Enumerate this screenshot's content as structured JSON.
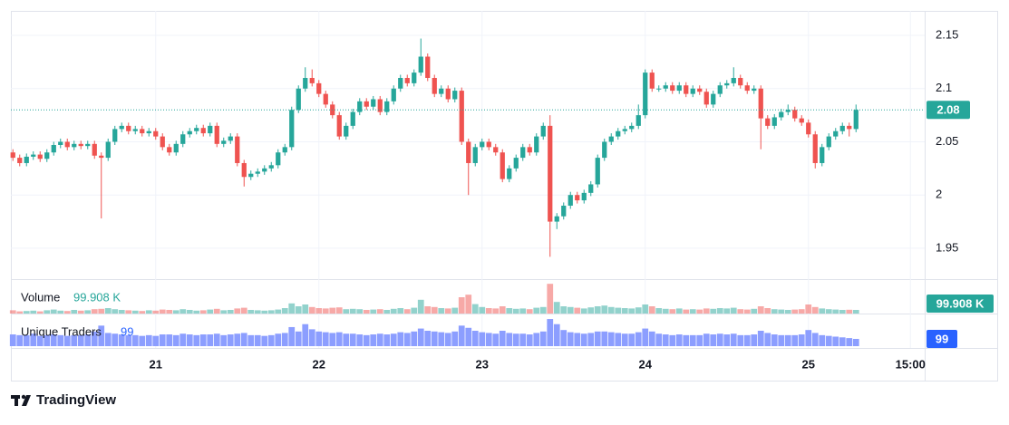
{
  "chart_data": {
    "type": "candlestick",
    "up_color": "#26a69a",
    "down_color": "#ef5350",
    "xlim": [
      -0.3,
      134.1
    ],
    "ylim": [
      1.921,
      2.173
    ],
    "yticks": [
      1.95,
      2,
      2.05,
      2.1,
      2.15
    ],
    "xticks": [
      {
        "value": 21,
        "label": "21"
      },
      {
        "value": 45,
        "label": "22"
      },
      {
        "value": 69,
        "label": "23"
      },
      {
        "value": 93,
        "label": "24"
      },
      {
        "value": 117,
        "label": "25"
      },
      {
        "value": 132,
        "label": "15:00"
      }
    ],
    "grid": true,
    "ohlc": [
      [
        2.04,
        2.043,
        2.032,
        2.035
      ],
      [
        2.035,
        2.038,
        2.027,
        2.03
      ],
      [
        2.03,
        2.039,
        2.027,
        2.036
      ],
      [
        2.036,
        2.041,
        2.033,
        2.038
      ],
      [
        2.038,
        2.041,
        2.031,
        2.034
      ],
      [
        2.034,
        2.043,
        2.031,
        2.04
      ],
      [
        2.04,
        2.05,
        2.037,
        2.047
      ],
      [
        2.047,
        2.053,
        2.044,
        2.05
      ],
      [
        2.05,
        2.053,
        2.042,
        2.045
      ],
      [
        2.045,
        2.051,
        2.042,
        2.048
      ],
      [
        2.048,
        2.051,
        2.043,
        2.046
      ],
      [
        2.046,
        2.051,
        2.043,
        2.048
      ],
      [
        2.048,
        2.051,
        2.034,
        2.037
      ],
      [
        2.037,
        2.04,
        1.978,
        2.035
      ],
      [
        2.035,
        2.053,
        2.032,
        2.05
      ],
      [
        2.05,
        2.065,
        2.047,
        2.062
      ],
      [
        2.062,
        2.068,
        2.059,
        2.065
      ],
      [
        2.065,
        2.068,
        2.057,
        2.06
      ],
      [
        2.06,
        2.065,
        2.057,
        2.062
      ],
      [
        2.062,
        2.065,
        2.055,
        2.058
      ],
      [
        2.058,
        2.063,
        2.055,
        2.06
      ],
      [
        2.06,
        2.063,
        2.052,
        2.055
      ],
      [
        2.055,
        2.058,
        2.042,
        2.045
      ],
      [
        2.045,
        2.048,
        2.037,
        2.04
      ],
      [
        2.04,
        2.051,
        2.037,
        2.048
      ],
      [
        2.048,
        2.06,
        2.045,
        2.057
      ],
      [
        2.057,
        2.063,
        2.054,
        2.06
      ],
      [
        2.06,
        2.066,
        2.057,
        2.063
      ],
      [
        2.063,
        2.066,
        2.055,
        2.058
      ],
      [
        2.058,
        2.068,
        2.055,
        2.065
      ],
      [
        2.065,
        2.068,
        2.045,
        2.048
      ],
      [
        2.048,
        2.054,
        2.045,
        2.051
      ],
      [
        2.051,
        2.058,
        2.048,
        2.055
      ],
      [
        2.055,
        2.058,
        2.027,
        2.03
      ],
      [
        2.03,
        2.033,
        2.008,
        2.017
      ],
      [
        2.017,
        2.023,
        2.014,
        2.02
      ],
      [
        2.02,
        2.025,
        2.017,
        2.022
      ],
      [
        2.022,
        2.028,
        2.019,
        2.025
      ],
      [
        2.025,
        2.031,
        2.022,
        2.028
      ],
      [
        2.028,
        2.043,
        2.025,
        2.04
      ],
      [
        2.04,
        2.048,
        2.037,
        2.045
      ],
      [
        2.045,
        2.083,
        2.042,
        2.08
      ],
      [
        2.08,
        2.103,
        2.077,
        2.1
      ],
      [
        2.1,
        2.12,
        2.097,
        2.11
      ],
      [
        2.11,
        2.118,
        2.102,
        2.105
      ],
      [
        2.105,
        2.108,
        2.092,
        2.095
      ],
      [
        2.095,
        2.098,
        2.082,
        2.085
      ],
      [
        2.085,
        2.088,
        2.072,
        2.075
      ],
      [
        2.075,
        2.078,
        2.052,
        2.055
      ],
      [
        2.055,
        2.068,
        2.052,
        2.065
      ],
      [
        2.065,
        2.081,
        2.062,
        2.078
      ],
      [
        2.078,
        2.091,
        2.075,
        2.088
      ],
      [
        2.088,
        2.091,
        2.08,
        2.083
      ],
      [
        2.083,
        2.093,
        2.08,
        2.09
      ],
      [
        2.09,
        2.093,
        2.075,
        2.078
      ],
      [
        2.078,
        2.091,
        2.075,
        2.088
      ],
      [
        2.088,
        2.103,
        2.085,
        2.1
      ],
      [
        2.1,
        2.113,
        2.097,
        2.11
      ],
      [
        2.11,
        2.113,
        2.102,
        2.105
      ],
      [
        2.105,
        2.118,
        2.102,
        2.115
      ],
      [
        2.115,
        2.147,
        2.112,
        2.13
      ],
      [
        2.13,
        2.133,
        2.107,
        2.11
      ],
      [
        2.11,
        2.113,
        2.092,
        2.095
      ],
      [
        2.095,
        2.103,
        2.092,
        2.1
      ],
      [
        2.1,
        2.103,
        2.087,
        2.09
      ],
      [
        2.09,
        2.101,
        2.087,
        2.098
      ],
      [
        2.098,
        2.101,
        2.047,
        2.05
      ],
      [
        2.05,
        2.053,
        2.0,
        2.03
      ],
      [
        2.03,
        2.048,
        2.027,
        2.045
      ],
      [
        2.045,
        2.053,
        2.042,
        2.05
      ],
      [
        2.05,
        2.053,
        2.042,
        2.045
      ],
      [
        2.045,
        2.048,
        2.037,
        2.04
      ],
      [
        2.04,
        2.043,
        2.012,
        2.015
      ],
      [
        2.015,
        2.028,
        2.012,
        2.025
      ],
      [
        2.025,
        2.038,
        2.022,
        2.035
      ],
      [
        2.035,
        2.048,
        2.032,
        2.045
      ],
      [
        2.045,
        2.048,
        2.037,
        2.04
      ],
      [
        2.04,
        2.058,
        2.037,
        2.055
      ],
      [
        2.055,
        2.068,
        2.052,
        2.065
      ],
      [
        2.065,
        2.075,
        1.942,
        1.975
      ],
      [
        1.975,
        1.983,
        1.968,
        1.98
      ],
      [
        1.98,
        1.993,
        1.977,
        1.99
      ],
      [
        1.99,
        2.003,
        1.987,
        2.0
      ],
      [
        2.0,
        2.003,
        1.992,
        1.995
      ],
      [
        1.995,
        2.005,
        1.992,
        2.002
      ],
      [
        2.002,
        2.013,
        1.999,
        2.01
      ],
      [
        2.01,
        2.038,
        2.007,
        2.035
      ],
      [
        2.035,
        2.053,
        2.032,
        2.05
      ],
      [
        2.05,
        2.058,
        2.047,
        2.055
      ],
      [
        2.055,
        2.063,
        2.052,
        2.06
      ],
      [
        2.06,
        2.065,
        2.057,
        2.062
      ],
      [
        2.062,
        2.068,
        2.059,
        2.065
      ],
      [
        2.065,
        2.085,
        2.062,
        2.075
      ],
      [
        2.075,
        2.118,
        2.072,
        2.115
      ],
      [
        2.115,
        2.118,
        2.097,
        2.1
      ],
      [
        2.1,
        2.103,
        2.097,
        2.1
      ],
      [
        2.1,
        2.106,
        2.097,
        2.103
      ],
      [
        2.103,
        2.106,
        2.095,
        2.098
      ],
      [
        2.098,
        2.106,
        2.095,
        2.103
      ],
      [
        2.103,
        2.106,
        2.092,
        2.095
      ],
      [
        2.095,
        2.103,
        2.092,
        2.1
      ],
      [
        2.1,
        2.103,
        2.094,
        2.097
      ],
      [
        2.097,
        2.1,
        2.082,
        2.085
      ],
      [
        2.085,
        2.098,
        2.082,
        2.095
      ],
      [
        2.095,
        2.106,
        2.092,
        2.103
      ],
      [
        2.103,
        2.108,
        2.1,
        2.105
      ],
      [
        2.105,
        2.12,
        2.102,
        2.11
      ],
      [
        2.11,
        2.113,
        2.1,
        2.103
      ],
      [
        2.103,
        2.106,
        2.095,
        2.098
      ],
      [
        2.098,
        2.103,
        2.095,
        2.1
      ],
      [
        2.1,
        2.103,
        2.043,
        2.072
      ],
      [
        2.072,
        2.075,
        2.062,
        2.065
      ],
      [
        2.065,
        2.076,
        2.062,
        2.073
      ],
      [
        2.073,
        2.081,
        2.07,
        2.078
      ],
      [
        2.078,
        2.085,
        2.075,
        2.08
      ],
      [
        2.08,
        2.083,
        2.069,
        2.072
      ],
      [
        2.072,
        2.075,
        2.065,
        2.068
      ],
      [
        2.068,
        2.071,
        2.054,
        2.057
      ],
      [
        2.057,
        2.06,
        2.025,
        2.03
      ],
      [
        2.03,
        2.048,
        2.027,
        2.045
      ],
      [
        2.045,
        2.058,
        2.042,
        2.055
      ],
      [
        2.055,
        2.063,
        2.052,
        2.06
      ],
      [
        2.06,
        2.068,
        2.057,
        2.065
      ],
      [
        2.065,
        2.068,
        2.055,
        2.062
      ],
      [
        2.062,
        2.085,
        2.059,
        2.08
      ]
    ],
    "volume": {
      "name": "Volume",
      "ylim": [
        0,
        900000
      ],
      "last_label": "99.908 K",
      "values": [
        90000,
        60000,
        70000,
        80000,
        60000,
        90000,
        110000,
        80000,
        70000,
        100000,
        80000,
        90000,
        120000,
        130000,
        150000,
        120000,
        100000,
        90000,
        80000,
        70000,
        90000,
        80000,
        110000,
        100000,
        90000,
        120000,
        100000,
        80000,
        90000,
        110000,
        130000,
        90000,
        100000,
        140000,
        160000,
        100000,
        90000,
        80000,
        90000,
        110000,
        150000,
        280000,
        200000,
        250000,
        180000,
        150000,
        140000,
        160000,
        170000,
        120000,
        130000,
        120000,
        100000,
        110000,
        120000,
        100000,
        130000,
        150000,
        120000,
        160000,
        380000,
        200000,
        180000,
        150000,
        140000,
        160000,
        450000,
        520000,
        260000,
        180000,
        150000,
        140000,
        200000,
        150000,
        130000,
        140000,
        120000,
        160000,
        180000,
        820000,
        320000,
        200000,
        180000,
        160000,
        140000,
        170000,
        200000,
        220000,
        180000,
        160000,
        150000,
        140000,
        170000,
        250000,
        200000,
        150000,
        130000,
        120000,
        140000,
        110000,
        120000,
        110000,
        140000,
        130000,
        150000,
        140000,
        160000,
        120000,
        110000,
        130000,
        200000,
        150000,
        120000,
        110000,
        100000,
        110000,
        120000,
        250000,
        180000,
        140000,
        120000,
        110000,
        100000,
        105000,
        99908
      ]
    },
    "traders": {
      "name": "Unique Traders",
      "color": "#8c9eff",
      "ylim": [
        0,
        420
      ],
      "values": [
        160,
        150,
        150,
        170,
        140,
        150,
        160,
        150,
        140,
        150,
        150,
        160,
        200,
        280,
        180,
        170,
        160,
        150,
        150,
        140,
        150,
        140,
        160,
        160,
        150,
        170,
        160,
        150,
        160,
        160,
        170,
        150,
        160,
        170,
        180,
        150,
        150,
        140,
        150,
        170,
        180,
        260,
        200,
        300,
        230,
        200,
        190,
        180,
        190,
        170,
        170,
        160,
        150,
        160,
        170,
        160,
        170,
        190,
        180,
        200,
        240,
        210,
        200,
        190,
        180,
        200,
        280,
        250,
        210,
        190,
        180,
        170,
        210,
        180,
        170,
        170,
        160,
        180,
        200,
        370,
        300,
        220,
        190,
        180,
        170,
        180,
        200,
        200,
        190,
        180,
        170,
        170,
        190,
        240,
        200,
        170,
        160,
        150,
        160,
        150,
        150,
        150,
        170,
        160,
        170,
        160,
        170,
        150,
        150,
        160,
        210,
        180,
        160,
        150,
        150,
        150,
        160,
        220,
        180,
        150,
        140,
        130,
        120,
        110,
        99
      ]
    }
  },
  "brand": "TradingView"
}
